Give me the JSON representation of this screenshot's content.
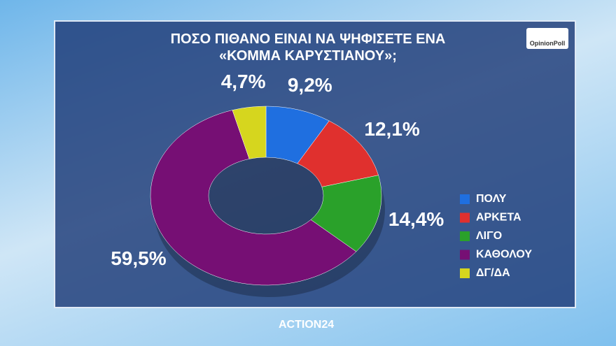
{
  "chart_data": {
    "type": "donut",
    "title": "ΠΟΣΟ ΠΙΘΑΝΟ ΕΙΝΑΙ ΝΑ ΨΗΦΙΣΕΤΕ ΕΝΑ «ΚΟΜΜΑ ΚΑΡΥΣΤΙΑΝΟΥ»;",
    "categories": [
      "ΠΟΛΥ",
      "ΑΡΚΕΤΑ",
      "ΛΙΓΟ",
      "ΚΑΘΟΛΟΥ",
      "ΔΓ/ΔΑ"
    ],
    "values": [
      9.2,
      12.1,
      14.4,
      59.5,
      4.7
    ],
    "value_labels": [
      "9,2%",
      "12,1%",
      "14,4%",
      "59,5%",
      "4,7%"
    ],
    "colors": [
      "#1f6fe0",
      "#e0302e",
      "#2aa12a",
      "#760f74",
      "#d6d61e"
    ],
    "legend": "right"
  },
  "logo": "OpinionPoll",
  "channel": "ACTION24"
}
